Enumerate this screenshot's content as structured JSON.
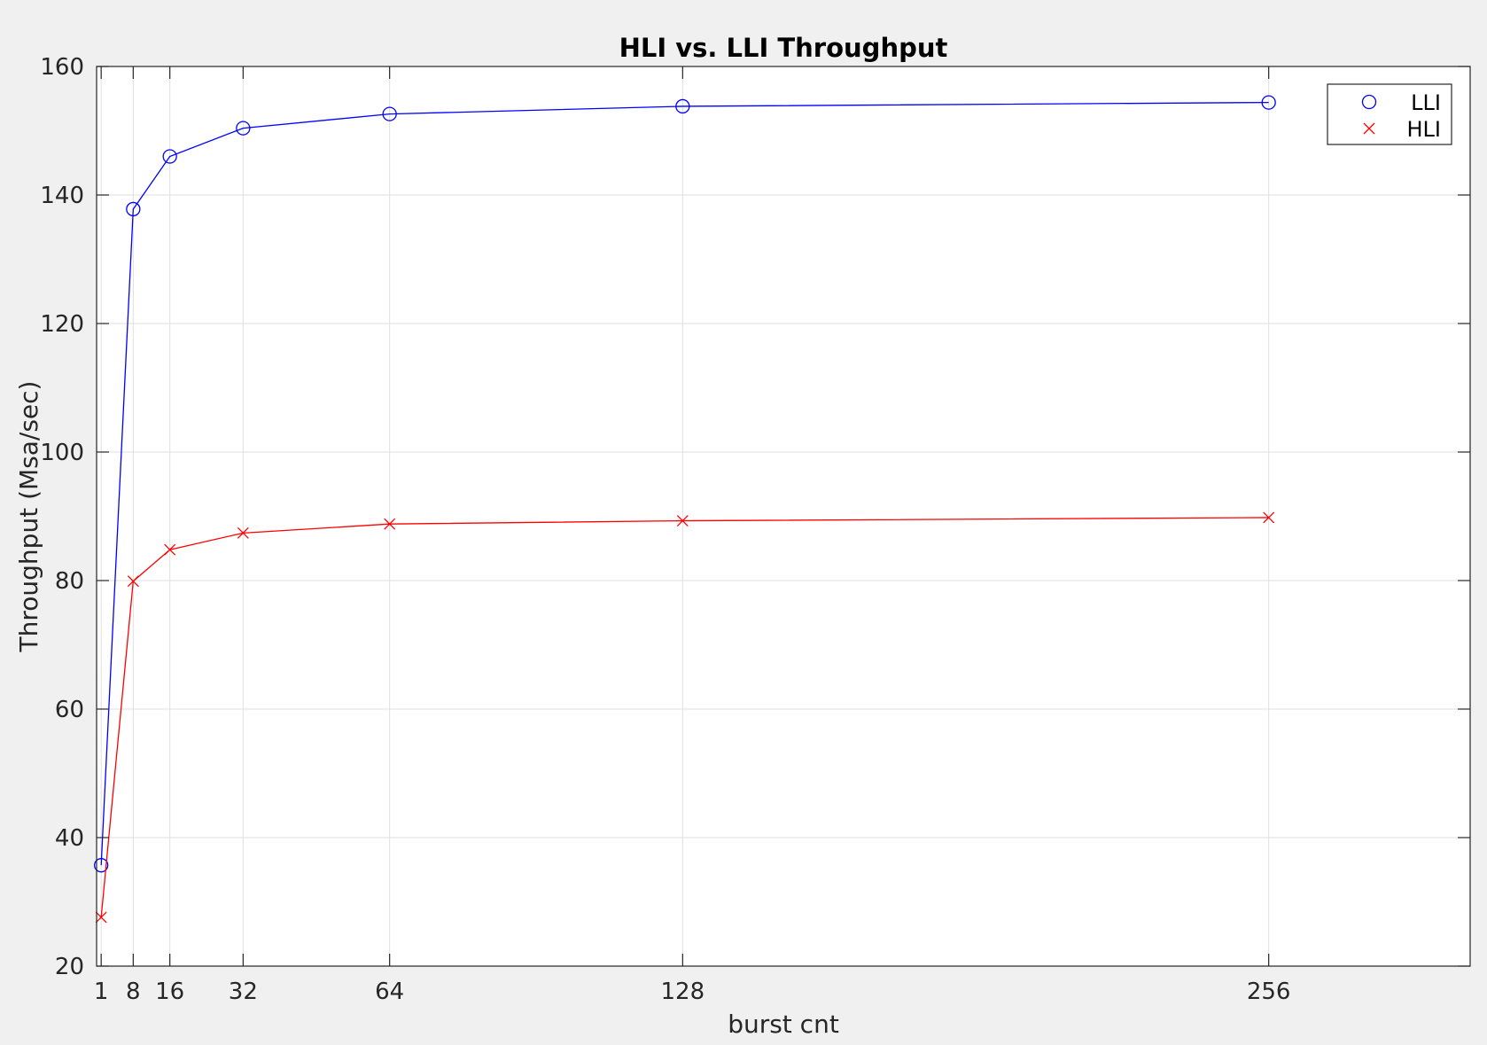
{
  "chart_data": {
    "type": "line",
    "title": "HLI vs. LLI Throughput",
    "xlabel": "burst cnt",
    "ylabel": "Throughput (Msa/sec)",
    "xlim": [
      0,
      300
    ],
    "ylim": [
      20,
      160
    ],
    "xticks": [
      1,
      8,
      16,
      32,
      64,
      128,
      256
    ],
    "yticks": [
      20,
      40,
      60,
      80,
      100,
      120,
      140,
      160
    ],
    "grid": true,
    "legend_position": "top-right",
    "x": [
      1,
      8,
      16,
      32,
      64,
      128,
      256
    ],
    "series": [
      {
        "name": "LLI",
        "color": "#0000ff",
        "marker": "circle",
        "values": [
          35.7,
          137.8,
          146.0,
          150.4,
          152.6,
          153.8,
          154.4
        ]
      },
      {
        "name": "HLI",
        "color": "#ff0000",
        "marker": "x",
        "values": [
          27.6,
          79.9,
          84.8,
          87.4,
          88.8,
          89.3,
          89.8
        ]
      }
    ]
  }
}
